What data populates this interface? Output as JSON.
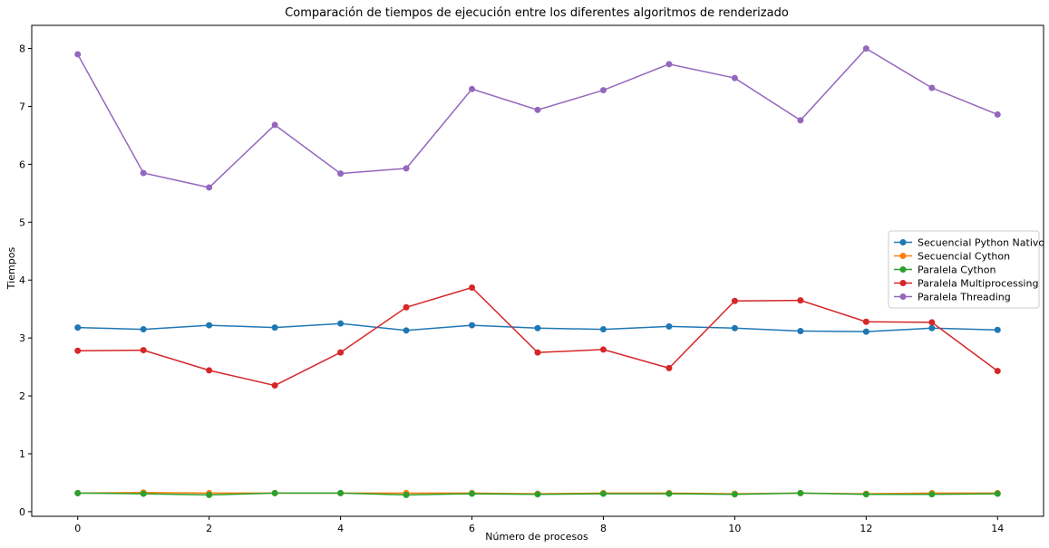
{
  "chart_data": {
    "type": "line",
    "title": "Comparación de tiempos de ejecución entre los diferentes algoritmos de renderizado",
    "xlabel": "Número de procesos",
    "ylabel": "Tiempos",
    "xlim": [
      -0.7,
      14.7
    ],
    "ylim": [
      -0.08,
      8.4
    ],
    "xticks": [
      0,
      2,
      4,
      6,
      8,
      10,
      12,
      14
    ],
    "yticks": [
      0,
      1,
      2,
      3,
      4,
      5,
      6,
      7,
      8
    ],
    "grid": false,
    "legend_position": "center-right",
    "x": [
      0,
      1,
      2,
      3,
      4,
      5,
      6,
      7,
      8,
      9,
      10,
      11,
      12,
      13,
      14
    ],
    "series": [
      {
        "name": "Secuencial Python Nativo",
        "color": "#1f77b4",
        "values": [
          3.18,
          3.15,
          3.22,
          3.18,
          3.25,
          3.13,
          3.22,
          3.17,
          3.15,
          3.2,
          3.17,
          3.12,
          3.11,
          3.17,
          3.14
        ]
      },
      {
        "name": "Secuencial Cython",
        "color": "#ff7f0e",
        "values": [
          0.32,
          0.33,
          0.32,
          0.32,
          0.32,
          0.32,
          0.32,
          0.31,
          0.32,
          0.32,
          0.31,
          0.32,
          0.31,
          0.32,
          0.32
        ]
      },
      {
        "name": "Paralela Cython",
        "color": "#2ca02c",
        "values": [
          0.32,
          0.31,
          0.29,
          0.32,
          0.32,
          0.29,
          0.31,
          0.3,
          0.31,
          0.31,
          0.3,
          0.32,
          0.3,
          0.3,
          0.31
        ]
      },
      {
        "name": "Paralela Multiprocessing",
        "color": "#d62728",
        "values": [
          2.78,
          2.79,
          2.44,
          2.18,
          2.75,
          3.53,
          3.87,
          2.75,
          2.8,
          2.48,
          3.64,
          3.65,
          3.28,
          3.27,
          2.43
        ]
      },
      {
        "name": "Paralela Threading",
        "color": "#9467bd",
        "values": [
          7.9,
          5.85,
          5.6,
          6.68,
          5.84,
          5.93,
          7.3,
          6.94,
          7.28,
          7.73,
          7.49,
          6.76,
          8.0,
          7.32,
          6.86
        ]
      }
    ]
  }
}
